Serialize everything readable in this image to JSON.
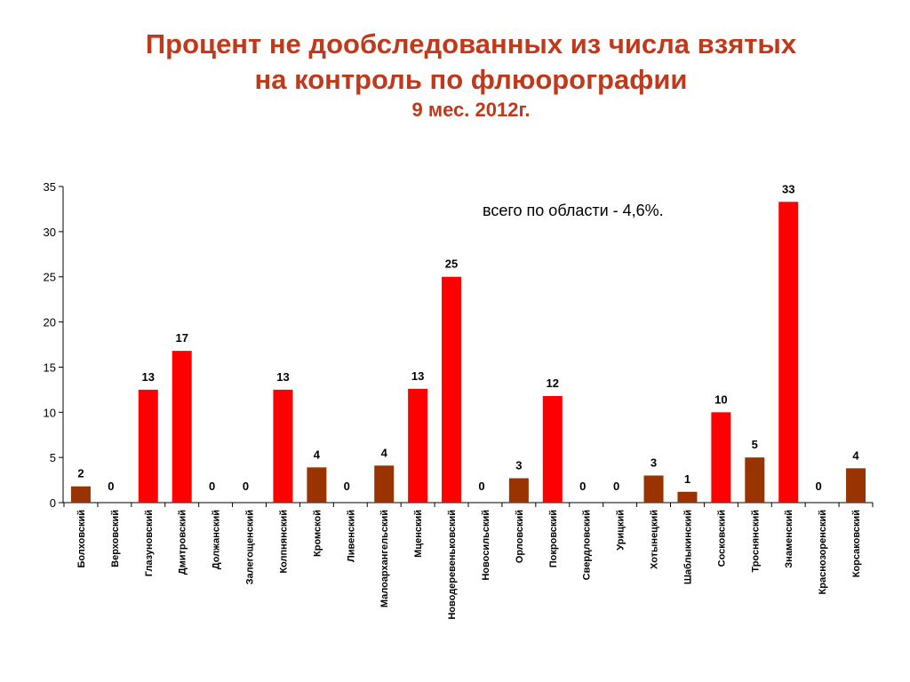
{
  "header": {
    "title_line1": "Процент не дообследованных из числа взятых",
    "title_line2": "на контроль по флюорографии",
    "subtitle": "9 мес. 2012г."
  },
  "annotation": "всего по области - 4,6%.",
  "colors": {
    "title": "#c0391b",
    "bar_red": "#ff0000",
    "bar_brown": "#993300",
    "axis": "#000000"
  },
  "chart_data": {
    "type": "bar",
    "title": "Процент не дообследованных из числа взятых на контроль по флюорографии",
    "subtitle": "9 мес. 2012г.",
    "ylim": [
      0,
      35
    ],
    "yticks": [
      0,
      5,
      10,
      15,
      20,
      25,
      30,
      35
    ],
    "grid": false,
    "legend": "none",
    "categories": [
      "Болховский",
      "Верховский",
      "Глазуновский",
      "Дмитровский",
      "Должанский",
      "Залегощенский",
      "Колпнянский",
      "Кромской",
      "Ливенский",
      "Малоархангельский",
      "Мценский",
      "Новодеревеньковский",
      "Новосильский",
      "Орловский",
      "Покровский",
      "Свердловский",
      "Урицкий",
      "Хотынецкий",
      "Шаблыкинский",
      "Сосковский",
      "Троснянский",
      "Знаменский",
      "Краснозоренский",
      "Корсаковский"
    ],
    "values": [
      1.8,
      0,
      12.5,
      16.8,
      0,
      0,
      12.5,
      3.9,
      0,
      4.1,
      12.6,
      25,
      0,
      2.7,
      11.8,
      0,
      0,
      3,
      1.2,
      10,
      5,
      33.3,
      0,
      3.8
    ],
    "labels": [
      "2",
      "0",
      "13",
      "17",
      "0",
      "0",
      "13",
      "4",
      "0",
      "4",
      "13",
      "25",
      "0",
      "3",
      "12",
      "0",
      "0",
      "3",
      "1",
      "10",
      "5",
      "33",
      "0",
      "4"
    ],
    "bar_colors": [
      "brown",
      "brown",
      "red",
      "red",
      "brown",
      "brown",
      "red",
      "brown",
      "brown",
      "brown",
      "red",
      "red",
      "brown",
      "brown",
      "red",
      "brown",
      "brown",
      "brown",
      "brown",
      "red",
      "brown",
      "red",
      "brown",
      "brown"
    ]
  }
}
